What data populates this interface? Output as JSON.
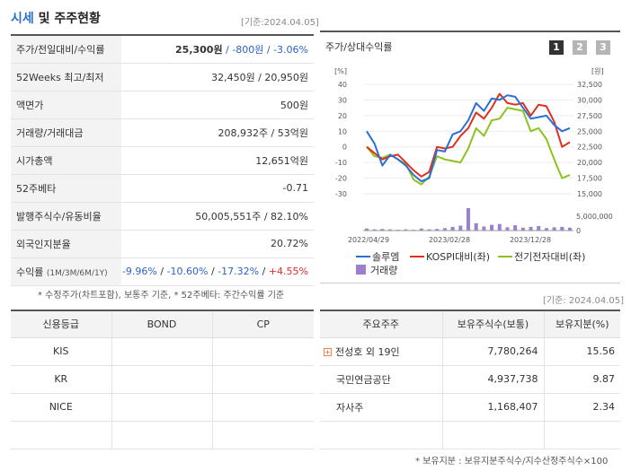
{
  "header": {
    "title_main": "시세",
    "title_rest": " 및 주주현황",
    "base_date": "[기준:2024.04.05]"
  },
  "quote_rows": [
    {
      "label": "주가/전일대비/수익률",
      "v1": "25,300원",
      "v2": " / -800원 / -3.06%"
    },
    {
      "label": "52Weeks 최고/최저",
      "value": "32,450원 / 20,950원"
    },
    {
      "label": "액면가",
      "value": "500원"
    },
    {
      "label": "거래량/거래대금",
      "value": "208,932주 / 53억원"
    },
    {
      "label": "시가총액",
      "value": "12,651억원"
    },
    {
      "label": "52주베타",
      "value": "-0.71"
    },
    {
      "label": "발행주식수/유동비율",
      "value": "50,005,551주 / 82.10%"
    },
    {
      "label": "외국인지분율",
      "value": "20.72%"
    },
    {
      "label": "수익률",
      "label_sub": "(1M/3M/6M/1Y)",
      "r1": "-9.96%",
      "r2": "-10.60%",
      "r3": "-17.32%",
      "r4": "+4.55%"
    }
  ],
  "footnote_left": "* 수정주가(차트포함), 보통주 기준, * 52주베타: 주간수익률 기준",
  "chart": {
    "title": "주가/상대수익률",
    "pages": [
      "1",
      "2",
      "3"
    ],
    "left_unit": "[%]",
    "right_unit": "[원]",
    "volume_label": "5,000,000",
    "volume_zero": "0",
    "legend": {
      "s1": "솔루엠",
      "s2": "KOSPI대비(좌)",
      "s3": "전기전자대비(좌)",
      "vol": "거래량"
    },
    "colors": {
      "s1": "#2b6fd6",
      "s2": "#e0301e",
      "s3": "#8dc21f",
      "vol": "#9b7fd1"
    }
  },
  "chart_data": {
    "type": "line",
    "x_ticks": [
      "2022/04/29",
      "2023/02/28",
      "2023/12/28"
    ],
    "y_left": [
      40,
      30,
      20,
      10,
      0,
      -10,
      -20,
      -30
    ],
    "y_left_range": [
      -30,
      40
    ],
    "y_right": [
      "32,500",
      "30,000",
      "27,500",
      "25,000",
      "22,500",
      "20,000",
      "17,500",
      "15,000"
    ],
    "y_right_range": [
      15000,
      32500
    ],
    "series": [
      {
        "name": "솔루엠",
        "values": [
          10,
          2,
          -12,
          -5,
          -8,
          -12,
          -18,
          -22,
          -20,
          -2,
          -3,
          8,
          10,
          17,
          28,
          23,
          31,
          30,
          33,
          32,
          25,
          18,
          19,
          20,
          14,
          10,
          12
        ]
      },
      {
        "name": "KOSPI대비(좌)",
        "values": [
          0,
          -4,
          -8,
          -6,
          -5,
          -10,
          -15,
          -19,
          -16,
          0,
          -1,
          0,
          7,
          12,
          22,
          18,
          25,
          34,
          28,
          27,
          28,
          20,
          27,
          26,
          16,
          0,
          3
        ]
      },
      {
        "name": "전기전자대비(좌)",
        "values": [
          0,
          -6,
          -7,
          -5,
          -8,
          -11,
          -21,
          -24,
          -19,
          -6,
          -8,
          -9,
          -10,
          -1,
          12,
          7,
          17,
          18,
          25,
          24,
          23,
          10,
          12,
          5,
          -8,
          -20,
          -18
        ]
      }
    ],
    "volume": [
      0.5,
      0.3,
      0.4,
      0.3,
      0.2,
      0.3,
      0.2,
      0.5,
      0.3,
      0.4,
      0.6,
      0.9,
      1.2,
      5.5,
      1.8,
      1.0,
      1.4,
      1.6,
      0.8,
      1.3,
      0.7,
      0.9,
      1.1,
      0.6,
      0.8,
      0.9,
      0.7
    ]
  },
  "credit": {
    "base_date": "[기준: 2024.04.05]",
    "headers": [
      "신용등급",
      "BOND",
      "CP"
    ],
    "rows": [
      {
        "agency": "KIS",
        "bond": "",
        "cp": ""
      },
      {
        "agency": "KR",
        "bond": "",
        "cp": ""
      },
      {
        "agency": "NICE",
        "bond": "",
        "cp": ""
      },
      {
        "agency": "",
        "bond": "",
        "cp": ""
      }
    ]
  },
  "holders": {
    "headers": [
      "주요주주",
      "보유주식수(보통)",
      "보유지분(%)"
    ],
    "rows": [
      {
        "name": "전성호 외 19인",
        "shares": "7,780,264",
        "ratio": "15.56"
      },
      {
        "name": "국민연금공단",
        "shares": "4,937,738",
        "ratio": "9.87"
      },
      {
        "name": "자사주",
        "shares": "1,168,407",
        "ratio": "2.34"
      },
      {
        "name": "",
        "shares": "",
        "ratio": ""
      }
    ],
    "footnote": "* 보유지분 : 보유지분주식수/지수산정주식수×100"
  }
}
